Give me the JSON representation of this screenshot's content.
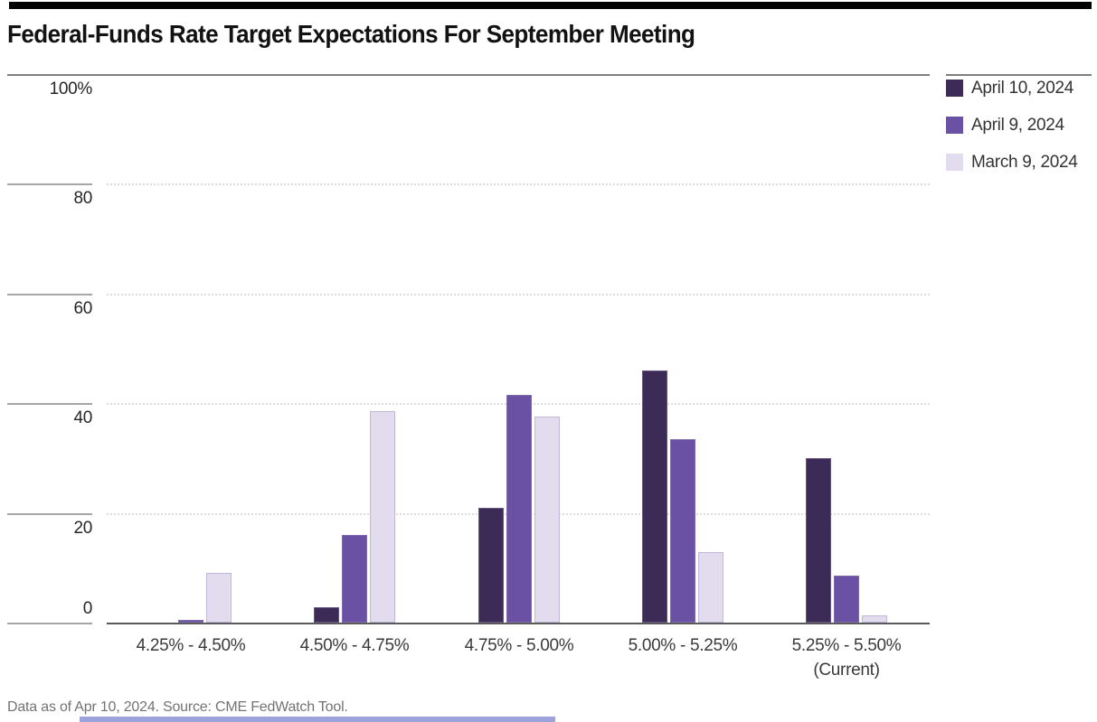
{
  "page": {
    "title": "Federal-Funds Rate Target Expectations For September Meeting",
    "source_note": "Data as of Apr 10, 2024. Source: CME FedWatch Tool."
  },
  "colors": {
    "accent_bar": "#000000",
    "series_dark_purple": "#3c2b57",
    "series_medium_purple": "#6a51a3",
    "series_light_lavender": "#e2dcee",
    "bottom_strip": "#9ba3da"
  },
  "chart_data": {
    "type": "bar",
    "title": "Federal-Funds Rate Target Expectations For September Meeting",
    "categories": [
      "4.25% - 4.50%",
      "4.50% - 4.75%",
      "4.75% - 5.00%",
      "5.00% - 5.25%",
      "5.25% - 5.50%"
    ],
    "category_sublabels": [
      "",
      "",
      "",
      "",
      "(Current)"
    ],
    "series": [
      {
        "name": "April 10, 2024",
        "color": "#3c2b57",
        "values": [
          0,
          2.8,
          21.0,
          45.9,
          30.0
        ]
      },
      {
        "name": "April 9, 2024",
        "color": "#6a51a3",
        "values": [
          0.5,
          15.9,
          41.5,
          33.5,
          8.5
        ]
      },
      {
        "name": "March 9, 2024",
        "color": "#e2dcee",
        "values": [
          9.0,
          38.5,
          37.6,
          12.9,
          1.4
        ]
      }
    ],
    "xlabel": "",
    "ylabel": "",
    "ylim": [
      0,
      100
    ],
    "yticks": [
      0,
      20,
      40,
      60,
      80,
      100
    ],
    "ytick_labels": [
      "0",
      "20",
      "40",
      "60",
      "80",
      "100%"
    ],
    "grid": "horizontal-dotted",
    "legend_position": "top-right",
    "unit": "percent probability"
  }
}
